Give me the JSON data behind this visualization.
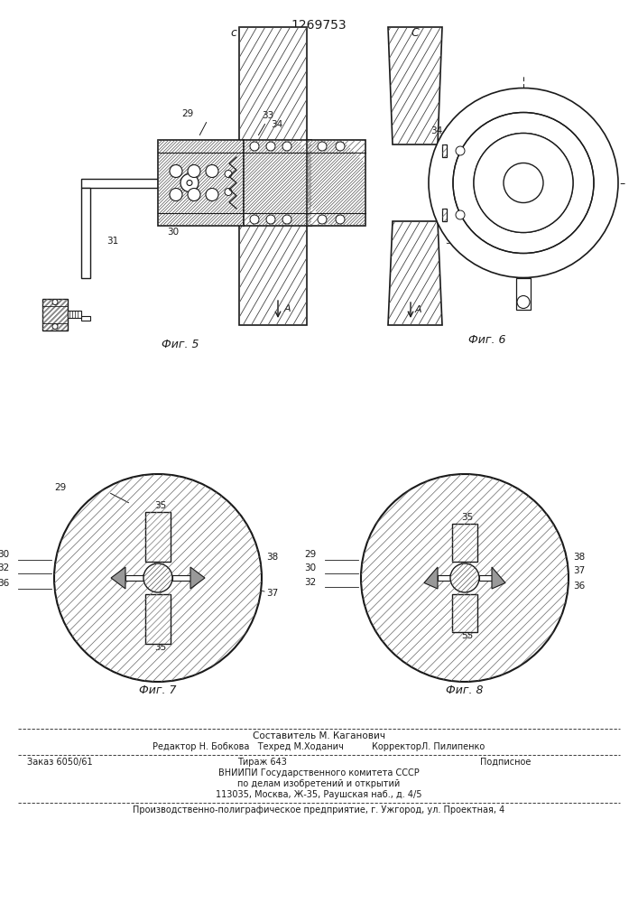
{
  "patent_number": "1269753",
  "bg": "#ffffff",
  "lc": "#1a1a1a",
  "fig5_label": "Фиг. 5",
  "fig6_label": "Фиг. 6",
  "fig7_label": "Фиг. 7",
  "fig8_label": "Фиг. 8",
  "footer1": "Составитель М. Каганович",
  "footer2": "Редактор Н. Бобкова   Техред М.Ходанич          КорректорЛ. Пилипенко",
  "footer3a": "Заказ 6050/61",
  "footer3b": "Тираж 643",
  "footer3c": "Подписное",
  "footer4": "ВНИИПИ Государственного комитета СССР",
  "footer5": "по делам изобретений и открытий",
  "footer6": "113035, Москва, Ж-35, Раушская наб., д. 4/5",
  "footer7": "Производственно-полиграфическое предприятие, г. Ужгород, ул. Проектная, 4"
}
